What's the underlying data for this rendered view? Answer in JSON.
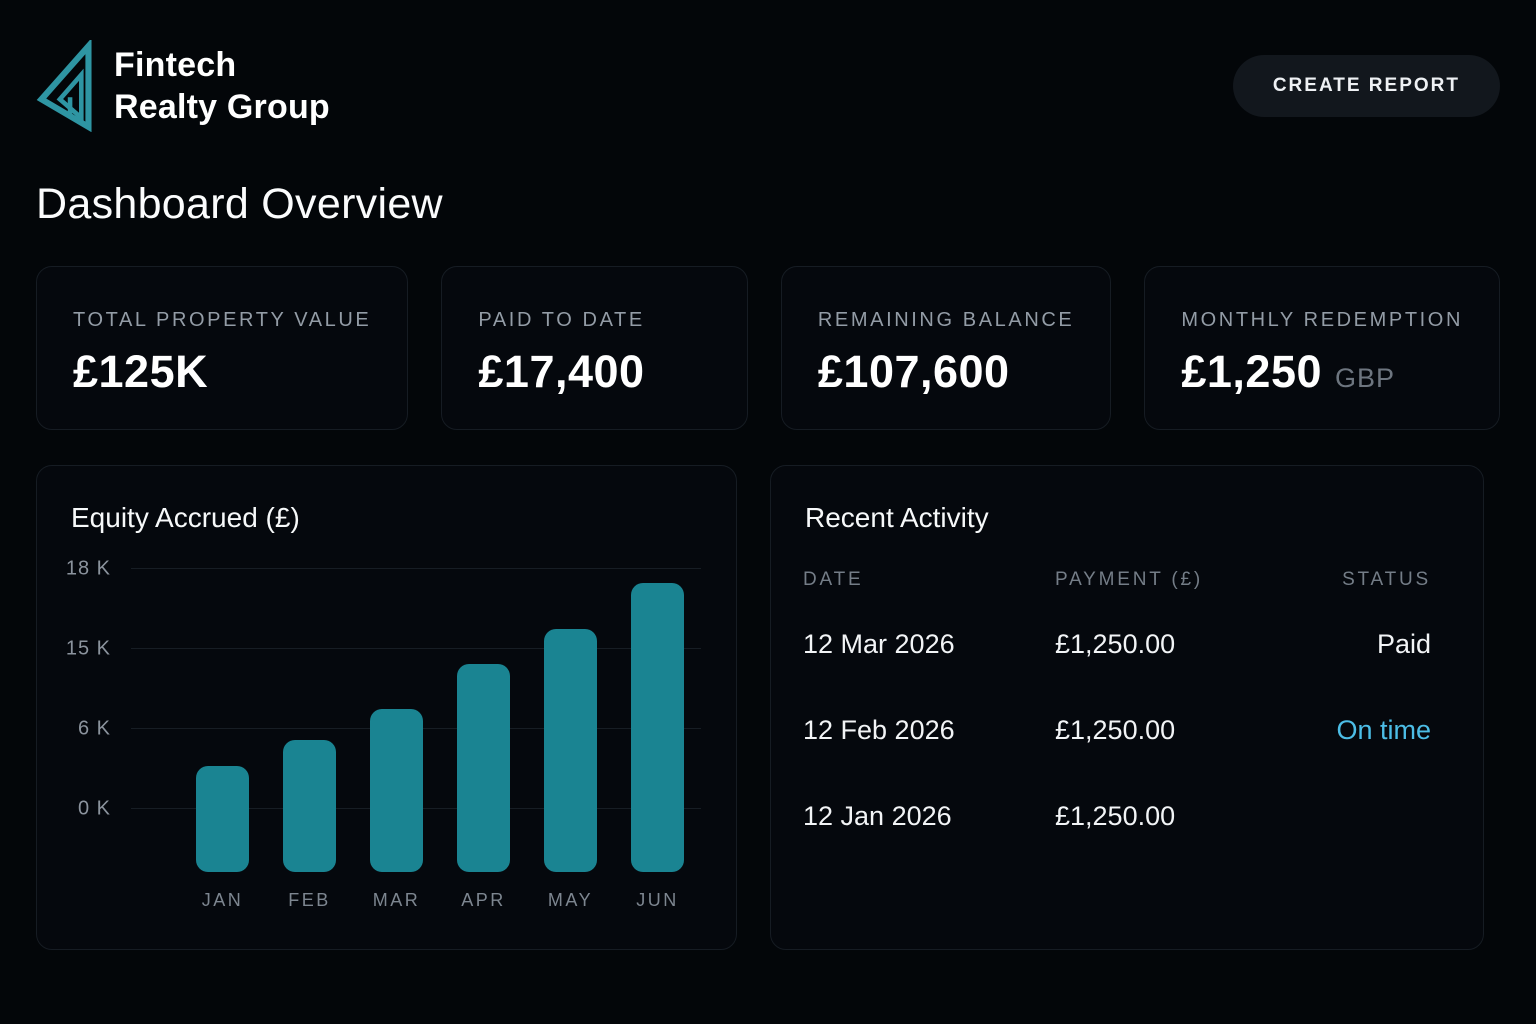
{
  "brand": {
    "name_line1": "Fintech",
    "name_line2": "Realty Group",
    "logo_color": "#2e95a3"
  },
  "header": {
    "create_report_label": "CREATE REPORT"
  },
  "page_title": "Dashboard Overview",
  "stats": [
    {
      "label": "TOTAL PROPERTY VALUE",
      "value": "£125K",
      "suffix": ""
    },
    {
      "label": "PAID TO DATE",
      "value": "£17,400",
      "suffix": ""
    },
    {
      "label": "REMAINING BALANCE",
      "value": "£107,600",
      "suffix": ""
    },
    {
      "label": "MONTHLY REDEMPTION",
      "value": "£1,250",
      "suffix": "GBP"
    }
  ],
  "chart_data": {
    "type": "bar",
    "title": "Equity Accrued (£)",
    "categories": [
      "JAN",
      "FEB",
      "MAR",
      "APR",
      "MAY",
      "JUN"
    ],
    "values": [
      2900,
      5800,
      8700,
      11600,
      14500,
      17400
    ],
    "heights_frac": [
      0.367,
      0.457,
      0.564,
      0.72,
      0.841,
      1.0
    ],
    "y_ticks": [
      "18 K",
      "15 K",
      "6 K",
      "0 K"
    ],
    "bar_color": "#1a8492",
    "grid": true,
    "legend": "none",
    "xlabel": "",
    "ylabel": ""
  },
  "activity": {
    "title": "Recent Activity",
    "columns": [
      "DATE",
      "PAYMENT (£)",
      "STATUS"
    ],
    "rows": [
      {
        "date": "12 Mar 2026",
        "payment": "£1,250.00",
        "status": "Paid",
        "status_color": "#f2f4f6"
      },
      {
        "date": "12 Feb 2026",
        "payment": "£1,250.00",
        "status": "On time",
        "status_color": "#4cbde6"
      },
      {
        "date": "12 Jan 2026",
        "payment": "£1,250.00",
        "status": "",
        "status_color": "#f2f4f6"
      }
    ]
  },
  "colors": {
    "background": "#030609",
    "card_background": "#05080d",
    "card_border": "#161c23",
    "accent_teal": "#1a8492",
    "status_cyan": "#4cbde6",
    "muted_gray": "#8b939d"
  }
}
